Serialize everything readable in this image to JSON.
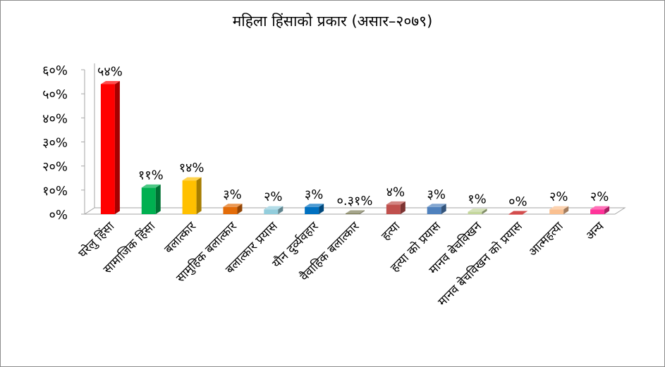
{
  "chart_data": {
    "type": "bar",
    "title": "महिला हिंसाको प्रकार (असार–२०७९)",
    "categories": [
      "घरेलु हिंसा",
      "सामाजिक हिंसा",
      "बलात्कार",
      "सामुहिक बलात्कार",
      "बलात्कार प्रयास",
      "यौन दुर्व्यवहार",
      "वैवाहिक बलात्कार",
      "हत्या",
      "हत्या को प्रयास",
      "मानव बेचविखन",
      "मानव बेचविखन को प्रयास",
      "आत्महत्या",
      "अन्य"
    ],
    "values": [
      54,
      11,
      14,
      3,
      2,
      3,
      0.31,
      4,
      3,
      1,
      0,
      2,
      2
    ],
    "data_labels": [
      "५४%",
      "११%",
      "१४%",
      "३%",
      "२%",
      "३%",
      "०.३१%",
      "४%",
      "३%",
      "१%",
      "०%",
      "२%",
      "२%"
    ],
    "y_tick_labels": [
      "०%",
      "१०%",
      "२०%",
      "३०%",
      "४०%",
      "५०%",
      "६०%"
    ],
    "ylim": [
      0,
      60
    ],
    "grid": false,
    "legend": "none",
    "colors": [
      "#ff0000",
      "#00b050",
      "#ffc000",
      "#e36c09",
      "#92cddc",
      "#0070c0",
      "#7f7f59",
      "#c0504d",
      "#4f81bd",
      "#c3d69b",
      "#c00000",
      "#fac090",
      "#ff3399"
    ]
  }
}
